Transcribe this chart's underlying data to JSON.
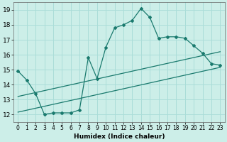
{
  "title": "",
  "xlabel": "Humidex (Indice chaleur)",
  "background_color": "#cceee8",
  "grid_color": "#aaddd8",
  "line_color": "#1a7a6e",
  "xlim": [
    -0.5,
    23.5
  ],
  "ylim": [
    11.5,
    19.5
  ],
  "xticks": [
    0,
    1,
    2,
    3,
    4,
    5,
    6,
    7,
    8,
    9,
    10,
    11,
    12,
    13,
    14,
    15,
    16,
    17,
    18,
    19,
    20,
    21,
    22,
    23
  ],
  "yticks": [
    12,
    13,
    14,
    15,
    16,
    17,
    18,
    19
  ],
  "curve1_x": [
    0,
    1,
    2,
    3,
    4,
    5,
    6,
    7,
    8,
    9,
    10,
    11,
    12,
    13,
    14,
    15,
    16,
    17,
    18,
    19,
    20,
    21,
    22,
    23
  ],
  "curve1_y": [
    14.9,
    14.3,
    13.4,
    12.0,
    12.1,
    12.1,
    12.1,
    12.3,
    15.8,
    14.4,
    16.5,
    17.8,
    18.0,
    18.3,
    19.1,
    18.5,
    17.1,
    17.2,
    17.2,
    17.1,
    16.6,
    16.1,
    15.4,
    15.3
  ],
  "line2_x": [
    0,
    23
  ],
  "line2_y": [
    12.15,
    15.15
  ],
  "line3_x": [
    0,
    23
  ],
  "line3_y": [
    13.2,
    16.2
  ]
}
